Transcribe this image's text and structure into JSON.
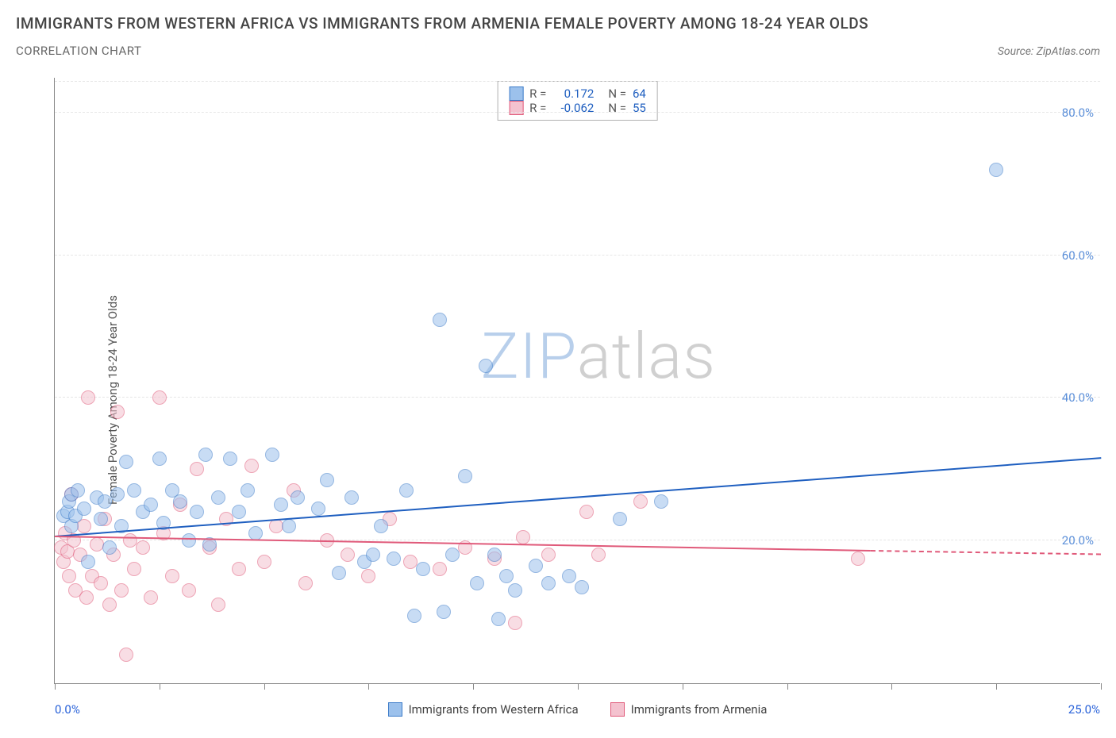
{
  "title": "IMMIGRANTS FROM WESTERN AFRICA VS IMMIGRANTS FROM ARMENIA FEMALE POVERTY AMONG 18-24 YEAR OLDS",
  "subtitle": "CORRELATION CHART",
  "source_label": "Source: ZipAtlas.com",
  "ylabel": "Female Poverty Among 18-24 Year Olds",
  "watermark_a": "ZIP",
  "watermark_b": "atlas",
  "watermark_color_a": "#b8cfeb",
  "watermark_color_b": "#d0d0d0",
  "chart": {
    "type": "scatter",
    "background_color": "#ffffff",
    "grid_color": "#e6e6e6",
    "axis_color": "#888888",
    "xlim": [
      0,
      25
    ],
    "ylim": [
      0,
      85
    ],
    "xtick_positions": [
      0,
      2.5,
      5,
      7.5,
      10,
      12.5,
      15,
      17.5,
      20,
      22.5,
      25
    ],
    "xaxis_labels": [
      {
        "pos": 0,
        "text": "0.0%"
      },
      {
        "pos": 25,
        "text": "25.0%"
      }
    ],
    "xaxis_label_color": "#2962d9",
    "ytick_positions": [
      20,
      40,
      60,
      80
    ],
    "ytick_labels": [
      "20.0%",
      "40.0%",
      "60.0%",
      "80.0%"
    ],
    "ytick_color": "#5b8fd9",
    "marker_radius": 9,
    "marker_opacity": 0.55,
    "marker_border_width": 1
  },
  "series": [
    {
      "name": "Immigrants from Western Africa",
      "fill_color": "#9cc1ec",
      "border_color": "#3d7cc9",
      "trend_color": "#1f5fc0",
      "r_value": "0.172",
      "n_value": "64",
      "trend": {
        "x1": 0,
        "y1": 20.5,
        "x2": 25,
        "y2": 31.5
      },
      "points": [
        [
          0.2,
          23.5
        ],
        [
          0.3,
          24
        ],
        [
          0.35,
          25.5
        ],
        [
          0.4,
          26.5
        ],
        [
          0.4,
          22
        ],
        [
          0.5,
          23.5
        ],
        [
          0.55,
          27
        ],
        [
          0.7,
          24.5
        ],
        [
          0.8,
          17
        ],
        [
          1.0,
          26
        ],
        [
          1.1,
          23
        ],
        [
          1.2,
          25.5
        ],
        [
          1.3,
          19
        ],
        [
          1.5,
          26.5
        ],
        [
          1.6,
          22
        ],
        [
          1.7,
          31
        ],
        [
          1.9,
          27
        ],
        [
          2.1,
          24
        ],
        [
          2.3,
          25
        ],
        [
          2.5,
          31.5
        ],
        [
          2.6,
          22.5
        ],
        [
          2.8,
          27
        ],
        [
          3.0,
          25.5
        ],
        [
          3.2,
          20
        ],
        [
          3.4,
          24
        ],
        [
          3.6,
          32
        ],
        [
          3.7,
          19.5
        ],
        [
          3.9,
          26
        ],
        [
          4.2,
          31.5
        ],
        [
          4.4,
          24
        ],
        [
          4.6,
          27
        ],
        [
          4.8,
          21
        ],
        [
          5.2,
          32
        ],
        [
          5.4,
          25
        ],
        [
          5.6,
          22
        ],
        [
          5.8,
          26
        ],
        [
          6.3,
          24.5
        ],
        [
          6.5,
          28.5
        ],
        [
          6.8,
          15.5
        ],
        [
          7.1,
          26
        ],
        [
          7.4,
          17
        ],
        [
          7.6,
          18
        ],
        [
          7.8,
          22
        ],
        [
          8.1,
          17.5
        ],
        [
          8.4,
          27
        ],
        [
          8.6,
          9.5
        ],
        [
          8.8,
          16
        ],
        [
          9.2,
          51
        ],
        [
          9.3,
          10
        ],
        [
          9.5,
          18
        ],
        [
          9.8,
          29
        ],
        [
          10.1,
          14
        ],
        [
          10.3,
          44.5
        ],
        [
          10.5,
          18
        ],
        [
          10.6,
          9
        ],
        [
          10.8,
          15
        ],
        [
          11.0,
          13
        ],
        [
          11.5,
          16.5
        ],
        [
          11.8,
          14
        ],
        [
          12.3,
          15
        ],
        [
          12.6,
          13.5
        ],
        [
          13.5,
          23
        ],
        [
          14.5,
          25.5
        ],
        [
          22.5,
          72
        ]
      ]
    },
    {
      "name": "Immigrants from Armenia",
      "fill_color": "#f4c2cf",
      "border_color": "#e05a7a",
      "trend_color": "#e05a7a",
      "r_value": "-0.062",
      "n_value": "55",
      "trend": {
        "x1": 0,
        "y1": 20.5,
        "x2": 19.5,
        "y2": 18.5
      },
      "trend_dashed_ext": {
        "x1": 19.5,
        "y1": 18.5,
        "x2": 25,
        "y2": 18.0
      },
      "points": [
        [
          0.15,
          19
        ],
        [
          0.2,
          17
        ],
        [
          0.25,
          21
        ],
        [
          0.3,
          18.5
        ],
        [
          0.35,
          15
        ],
        [
          0.4,
          26.5
        ],
        [
          0.45,
          20
        ],
        [
          0.5,
          13
        ],
        [
          0.6,
          18
        ],
        [
          0.7,
          22
        ],
        [
          0.75,
          12
        ],
        [
          0.8,
          40
        ],
        [
          0.9,
          15
        ],
        [
          1.0,
          19.5
        ],
        [
          1.1,
          14
        ],
        [
          1.2,
          23
        ],
        [
          1.3,
          11
        ],
        [
          1.4,
          18
        ],
        [
          1.5,
          38
        ],
        [
          1.6,
          13
        ],
        [
          1.7,
          4
        ],
        [
          1.8,
          20
        ],
        [
          1.9,
          16
        ],
        [
          2.1,
          19
        ],
        [
          2.3,
          12
        ],
        [
          2.5,
          40
        ],
        [
          2.6,
          21
        ],
        [
          2.8,
          15
        ],
        [
          3.0,
          25
        ],
        [
          3.2,
          13
        ],
        [
          3.4,
          30
        ],
        [
          3.7,
          19
        ],
        [
          3.9,
          11
        ],
        [
          4.1,
          23
        ],
        [
          4.4,
          16
        ],
        [
          4.7,
          30.5
        ],
        [
          5.0,
          17
        ],
        [
          5.3,
          22
        ],
        [
          5.7,
          27
        ],
        [
          6.0,
          14
        ],
        [
          6.5,
          20
        ],
        [
          7.0,
          18
        ],
        [
          7.5,
          15
        ],
        [
          8.0,
          23
        ],
        [
          8.5,
          17
        ],
        [
          9.2,
          16
        ],
        [
          9.8,
          19
        ],
        [
          10.5,
          17.5
        ],
        [
          11.0,
          8.5
        ],
        [
          11.2,
          20.5
        ],
        [
          11.8,
          18
        ],
        [
          12.7,
          24
        ],
        [
          13.0,
          18
        ],
        [
          14.0,
          25.5
        ],
        [
          19.2,
          17.5
        ]
      ]
    }
  ],
  "legend_box": {
    "r_label": "R =",
    "n_label": "N ="
  },
  "bottom_legend": [
    {
      "label": "Immigrants from Western Africa",
      "fill": "#9cc1ec",
      "border": "#3d7cc9"
    },
    {
      "label": "Immigrants from Armenia",
      "fill": "#f4c2cf",
      "border": "#e05a7a"
    }
  ]
}
